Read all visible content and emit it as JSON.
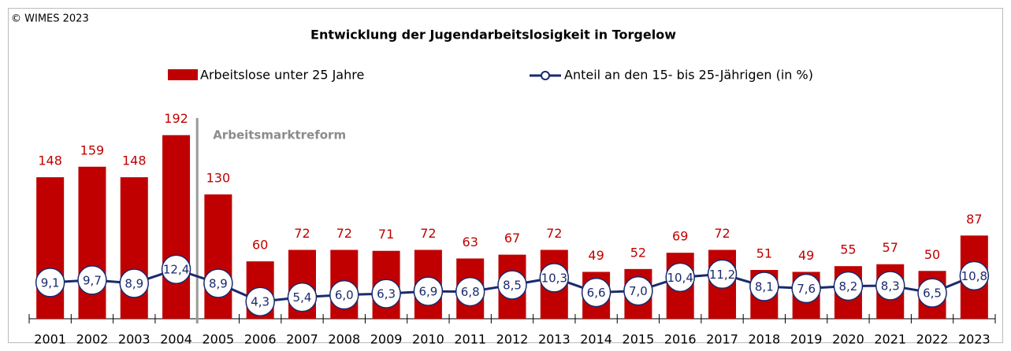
{
  "chart_data": {
    "type": "bar_line",
    "title": "Entwicklung der Jugendarbeitslosigkeit in Torgelow",
    "copyright": "© WIMES 2023",
    "annotation": "Arbeitsmarktreform",
    "categories": [
      "2001",
      "2002",
      "2003",
      "2004",
      "2005",
      "2006",
      "2007",
      "2008",
      "2009",
      "2010",
      "2011",
      "2012",
      "2013",
      "2014",
      "2015",
      "2016",
      "2017",
      "2018",
      "2019",
      "2020",
      "2021",
      "2022",
      "2023"
    ],
    "ylim": [
      0,
      200
    ],
    "y2lim": [
      0,
      48
    ],
    "series": [
      {
        "name": "Arbeitslose unter 25 Jahre",
        "type": "bar",
        "color": "#c00000",
        "values": [
          148,
          159,
          148,
          192,
          130,
          60,
          72,
          72,
          71,
          72,
          63,
          67,
          72,
          49,
          52,
          69,
          72,
          51,
          49,
          55,
          57,
          50,
          87
        ]
      },
      {
        "name": "Anteil an den 15- bis 25-Jährigen (in %)",
        "type": "line",
        "axis": "y2",
        "color": "#1a2a6c",
        "values": [
          9.1,
          9.7,
          8.9,
          12.4,
          8.9,
          4.3,
          5.4,
          6.0,
          6.3,
          6.9,
          6.8,
          8.5,
          10.3,
          6.6,
          7.0,
          10.4,
          11.2,
          8.1,
          7.6,
          8.2,
          8.3,
          6.5,
          10.8
        ],
        "value_labels": [
          "9,1",
          "9,7",
          "8,9",
          "12,4",
          "8,9",
          "4,3",
          "5,4",
          "6,0",
          "6,3",
          "6,9",
          "6,8",
          "8,5",
          "10,3",
          "6,6",
          "7,0",
          "10,4",
          "11,2",
          "8,1",
          "7,6",
          "8,2",
          "8,3",
          "6,5",
          "10,8"
        ]
      }
    ]
  }
}
